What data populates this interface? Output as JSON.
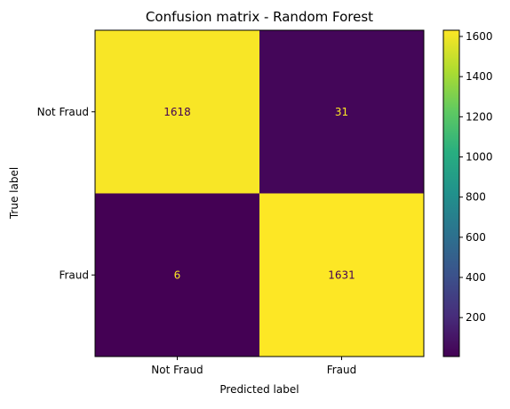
{
  "chart_data": {
    "type": "heatmap",
    "title": "Confusion matrix - Random Forest",
    "xlabel": "Predicted label",
    "ylabel": "True label",
    "x_categories": [
      "Not Fraud",
      "Fraud"
    ],
    "y_categories": [
      "Not Fraud",
      "Fraud"
    ],
    "matrix": [
      [
        1618,
        31
      ],
      [
        6,
        1631
      ]
    ],
    "colormap": "viridis",
    "color_range": [
      6,
      1631
    ],
    "colorbar_ticks": [
      200,
      400,
      600,
      800,
      1000,
      1200,
      1400,
      1600
    ],
    "text_color_on_dark": "#fde725",
    "text_color_on_light": "#440154",
    "grid": false
  }
}
